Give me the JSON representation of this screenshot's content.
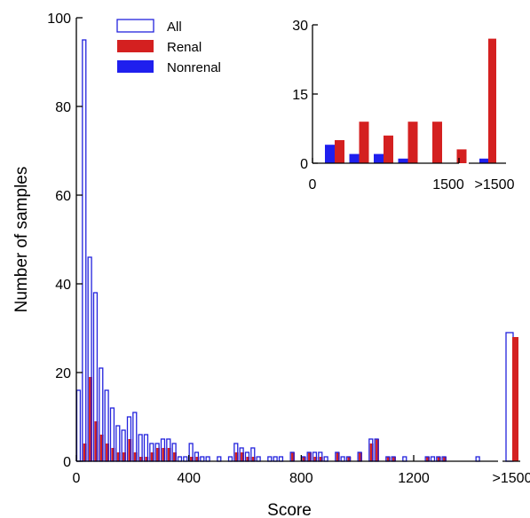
{
  "chart_data": [
    {
      "type": "bar",
      "xlabel": "Score",
      "ylabel": "Number of samples",
      "xlim": [
        0,
        1500
      ],
      "ylim": [
        0,
        100
      ],
      "x_ticks": [
        "0",
        "400",
        "800",
        "1200"
      ],
      "overflow_tick": ">1500",
      "y_ticks": [
        "0",
        "20",
        "40",
        "60",
        "80",
        "100"
      ],
      "bin_width": 20,
      "legend_placement": "top-left",
      "series": [
        {
          "name": "All",
          "style": "outline",
          "color": "#2222dd",
          "bins": [
            [
              0,
              16
            ],
            [
              20,
              95
            ],
            [
              40,
              46
            ],
            [
              60,
              38
            ],
            [
              80,
              21
            ],
            [
              100,
              16
            ],
            [
              120,
              12
            ],
            [
              140,
              8
            ],
            [
              160,
              7
            ],
            [
              180,
              10
            ],
            [
              200,
              11
            ],
            [
              220,
              6
            ],
            [
              240,
              6
            ],
            [
              260,
              4
            ],
            [
              280,
              4
            ],
            [
              300,
              5
            ],
            [
              320,
              5
            ],
            [
              340,
              4
            ],
            [
              360,
              1
            ],
            [
              380,
              1
            ],
            [
              400,
              4
            ],
            [
              420,
              2
            ],
            [
              440,
              1
            ],
            [
              460,
              1
            ],
            [
              500,
              1
            ],
            [
              540,
              1
            ],
            [
              560,
              4
            ],
            [
              580,
              3
            ],
            [
              600,
              2
            ],
            [
              620,
              3
            ],
            [
              640,
              1
            ],
            [
              680,
              1
            ],
            [
              700,
              1
            ],
            [
              720,
              1
            ],
            [
              760,
              2
            ],
            [
              800,
              1
            ],
            [
              820,
              2
            ],
            [
              840,
              2
            ],
            [
              860,
              2
            ],
            [
              880,
              1
            ],
            [
              920,
              2
            ],
            [
              940,
              1
            ],
            [
              960,
              1
            ],
            [
              1000,
              2
            ],
            [
              1040,
              5
            ],
            [
              1060,
              5
            ],
            [
              1100,
              1
            ],
            [
              1120,
              1
            ],
            [
              1160,
              1
            ],
            [
              1240,
              1
            ],
            [
              1260,
              1
            ],
            [
              1280,
              1
            ],
            [
              1300,
              1
            ],
            [
              1420,
              1
            ]
          ],
          "overflow": 29
        },
        {
          "name": "Renal",
          "style": "filled",
          "color": "#d42020",
          "bins": [
            [
              20,
              4
            ],
            [
              40,
              19
            ],
            [
              60,
              9
            ],
            [
              80,
              6
            ],
            [
              100,
              4
            ],
            [
              120,
              3
            ],
            [
              140,
              2
            ],
            [
              160,
              2
            ],
            [
              180,
              5
            ],
            [
              200,
              2
            ],
            [
              220,
              1
            ],
            [
              240,
              1
            ],
            [
              260,
              2
            ],
            [
              280,
              3
            ],
            [
              300,
              3
            ],
            [
              320,
              3
            ],
            [
              340,
              2
            ],
            [
              400,
              1
            ],
            [
              420,
              1
            ],
            [
              560,
              2
            ],
            [
              580,
              2
            ],
            [
              600,
              1
            ],
            [
              620,
              1
            ],
            [
              760,
              2
            ],
            [
              800,
              1
            ],
            [
              820,
              2
            ],
            [
              840,
              1
            ],
            [
              860,
              1
            ],
            [
              920,
              2
            ],
            [
              960,
              1
            ],
            [
              1000,
              2
            ],
            [
              1040,
              4
            ],
            [
              1060,
              5
            ],
            [
              1100,
              1
            ],
            [
              1120,
              1
            ],
            [
              1240,
              1
            ],
            [
              1280,
              1
            ],
            [
              1300,
              1
            ]
          ],
          "overflow": 28
        },
        {
          "name": "Nonrenal",
          "style": "filled",
          "color": "#1f1fee",
          "bins": [],
          "overflow": 0
        }
      ]
    },
    {
      "type": "bar",
      "inset": true,
      "xlim": [
        0,
        1500
      ],
      "ylim": [
        0,
        30
      ],
      "x_ticks": [
        "0",
        "1500"
      ],
      "overflow_tick": ">1500",
      "y_ticks": [
        "0",
        "15",
        "30"
      ],
      "bin_width": 250,
      "series": [
        {
          "name": "Nonrenal",
          "color": "#1f1fee",
          "values": [
            4,
            2,
            2,
            1,
            0,
            0
          ],
          "overflow": 1
        },
        {
          "name": "Renal",
          "color": "#d42020",
          "values": [
            5,
            9,
            6,
            9,
            9,
            3
          ],
          "overflow": 27
        }
      ]
    }
  ]
}
